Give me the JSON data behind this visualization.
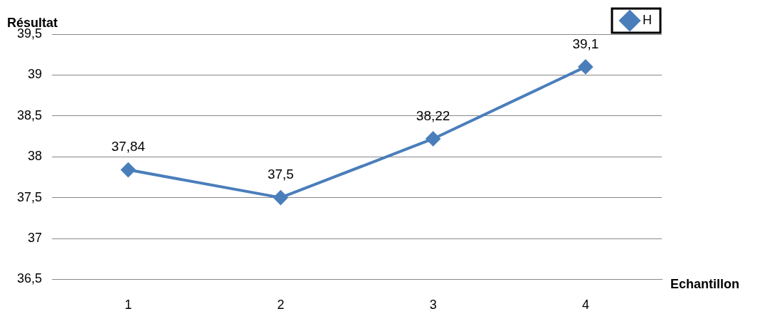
{
  "chart_data": {
    "type": "line",
    "xlabel": "Echantillon",
    "ylabel": "Résultat",
    "categories": [
      "1",
      "2",
      "3",
      "4"
    ],
    "series": [
      {
        "name": "H",
        "color": "#4a7ebb",
        "values": [
          37.84,
          37.5,
          38.22,
          39.1
        ],
        "value_labels": [
          "37,84",
          "37,5",
          "38,22",
          "39,1"
        ]
      }
    ],
    "ylim": [
      36.5,
      39.5
    ],
    "yticks": [
      {
        "value": 36.5,
        "label": "36,5"
      },
      {
        "value": 37,
        "label": "37"
      },
      {
        "value": 37.5,
        "label": "37,5"
      },
      {
        "value": 38,
        "label": "38"
      },
      {
        "value": 38.5,
        "label": "38,5"
      },
      {
        "value": 39,
        "label": "39"
      },
      {
        "value": 39.5,
        "label": "39,5"
      }
    ],
    "grid": "y",
    "legend": "top right",
    "marker": "diamond",
    "line_style": "solid"
  }
}
